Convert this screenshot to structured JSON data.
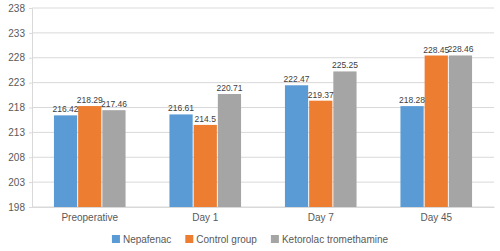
{
  "chart_data": {
    "type": "bar",
    "categories": [
      "Preoperative",
      "Day 1",
      "Day 7",
      "Day 45"
    ],
    "series": [
      {
        "name": "Nepafenac",
        "color": "#5b9bd5",
        "values": [
          216.42,
          216.61,
          222.47,
          218.28
        ]
      },
      {
        "name": "Control group",
        "color": "#ed7d31",
        "values": [
          218.29,
          214.5,
          219.37,
          228.45
        ]
      },
      {
        "name": "Ketorolac tromethamine",
        "color": "#a5a5a5",
        "values": [
          217.46,
          220.71,
          225.25,
          228.46
        ]
      }
    ],
    "ylim": [
      198,
      238
    ],
    "yticks": [
      198,
      203,
      208,
      213,
      218,
      223,
      228,
      233,
      238
    ],
    "grid": true,
    "data_labels": true,
    "legend": "bottom"
  }
}
